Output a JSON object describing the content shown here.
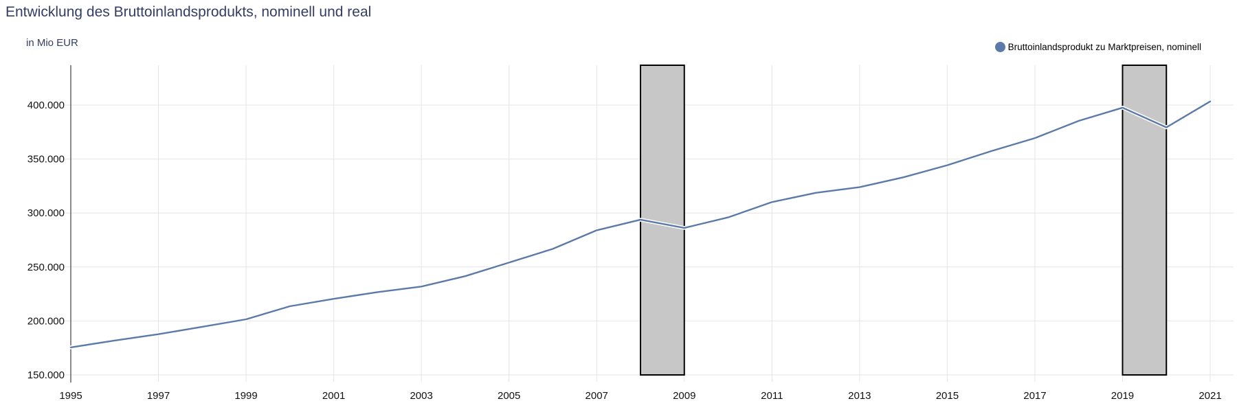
{
  "title": "Entwicklung des Bruttoinlandsprodukts, nominell und real",
  "subtitle": "in Mio EUR",
  "legend": {
    "items": [
      {
        "label": "Bruttoinlandsprodukt zu Marktpreisen, nominell",
        "color": "#5b7aa8"
      }
    ]
  },
  "colors": {
    "title": "#333d66",
    "line": "#5b7aa8",
    "line_halo": "#ffffff",
    "grid": "#e4e4e4",
    "axis": "#3d3d3d",
    "band_fill": "#c7c7c7",
    "band_stroke": "#000000",
    "tick_label": "#111111"
  },
  "chart_data": {
    "type": "line",
    "title": "Entwicklung des Bruttoinlandsprodukts, nominell und real",
    "xlabel": "",
    "ylabel": "in Mio EUR",
    "x": [
      1995,
      1996,
      1997,
      1998,
      1999,
      2000,
      2001,
      2002,
      2003,
      2004,
      2005,
      2006,
      2007,
      2008,
      2009,
      2010,
      2011,
      2012,
      2013,
      2014,
      2015,
      2016,
      2017,
      2018,
      2019,
      2020,
      2021
    ],
    "series": [
      {
        "name": "Bruttoinlandsprodukt zu Marktpreisen, nominell",
        "color": "#5b7aa8",
        "values": [
          175500,
          181900,
          187700,
          194600,
          201500,
          213600,
          220500,
          226700,
          231900,
          241500,
          254100,
          266800,
          284000,
          293800,
          286200,
          295900,
          310100,
          318700,
          323900,
          333100,
          344300,
          357300,
          369400,
          385400,
          397600,
          379300,
          403400
        ]
      }
    ],
    "xlim": [
      1995,
      2021
    ],
    "ylim": [
      150000,
      437000
    ],
    "y_ticks": [
      150000,
      200000,
      250000,
      300000,
      350000,
      400000
    ],
    "y_tick_labels": [
      "150.000",
      "200.000",
      "250.000",
      "300.000",
      "350.000",
      "400.000"
    ],
    "x_ticks": [
      1995,
      1997,
      1999,
      2001,
      2003,
      2005,
      2007,
      2009,
      2011,
      2013,
      2015,
      2017,
      2019,
      2021
    ],
    "x_tick_labels": [
      "1995",
      "1997",
      "1999",
      "2001",
      "2003",
      "2005",
      "2007",
      "2009",
      "2011",
      "2013",
      "2015",
      "2017",
      "2019",
      "2021"
    ],
    "grid": true,
    "legend_position": "top-right",
    "highlight_bands": [
      {
        "from": 2008,
        "to": 2009
      },
      {
        "from": 2019,
        "to": 2020
      }
    ]
  }
}
